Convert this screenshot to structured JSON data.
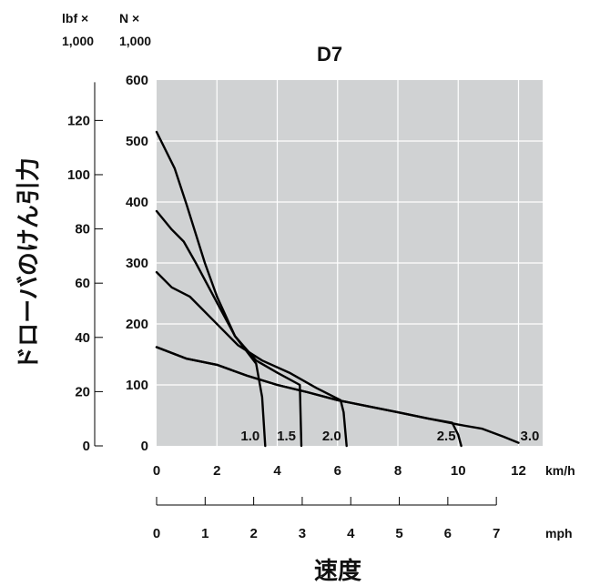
{
  "chart_data": {
    "type": "line",
    "title": "D7",
    "ylabel": "ドローバのけん引力",
    "xlabel": "速度",
    "units": {
      "y_left_outer": [
        "lbf ×",
        "1,000"
      ],
      "y_left_inner": [
        "N ×",
        "1,000"
      ],
      "x_primary": "km/h",
      "x_secondary": "mph"
    },
    "axes": {
      "x_kmh": {
        "min": 0,
        "max": 12.8,
        "ticks": [
          0,
          2,
          4,
          6,
          8,
          10,
          12
        ]
      },
      "x_mph": {
        "ticks": [
          0,
          1,
          2,
          3,
          4,
          5,
          6,
          7
        ]
      },
      "y_kN": {
        "min": 0,
        "max": 600,
        "ticks": [
          0,
          100,
          200,
          300,
          400,
          500,
          600
        ]
      },
      "y_klbf": {
        "ticks": [
          0,
          20,
          40,
          60,
          80,
          100,
          120
        ]
      }
    },
    "grid": true,
    "series": [
      {
        "name": "1.0",
        "x": [
          0,
          0.6,
          1.0,
          1.6,
          2.0,
          2.6,
          3.3,
          3.5,
          3.6
        ],
        "y": [
          515,
          455,
          395,
          300,
          245,
          180,
          135,
          80,
          0
        ]
      },
      {
        "name": "1.5",
        "x": [
          0,
          0.5,
          0.9,
          1.3,
          2.0,
          2.6,
          3.3,
          4.0,
          4.75,
          4.8
        ],
        "y": [
          385,
          355,
          335,
          300,
          235,
          180,
          140,
          120,
          100,
          0
        ]
      },
      {
        "name": "2.0",
        "x": [
          0,
          0.5,
          1.1,
          1.8,
          2.7,
          3.5,
          4.4,
          5.3,
          6.1,
          6.2,
          6.3
        ],
        "y": [
          285,
          260,
          245,
          210,
          165,
          140,
          120,
          95,
          75,
          55,
          0
        ]
      },
      {
        "name": "2.5",
        "x": [
          0,
          1.0,
          2.0,
          3.0,
          4.0,
          5.0,
          6.0,
          7.0,
          8.0,
          9.0,
          9.8,
          10.0,
          10.1
        ],
        "y": [
          162,
          143,
          133,
          115,
          100,
          88,
          75,
          65,
          55,
          45,
          38,
          18,
          0
        ]
      },
      {
        "name": "3.0",
        "x": [
          0,
          1.0,
          2.0,
          3.0,
          4.0,
          5.0,
          6.0,
          7.0,
          8.0,
          9.0,
          10.0,
          10.8,
          11.5,
          12.0
        ],
        "y": [
          162,
          143,
          133,
          115,
          100,
          88,
          75,
          65,
          55,
          45,
          35,
          28,
          15,
          5
        ]
      }
    ]
  }
}
